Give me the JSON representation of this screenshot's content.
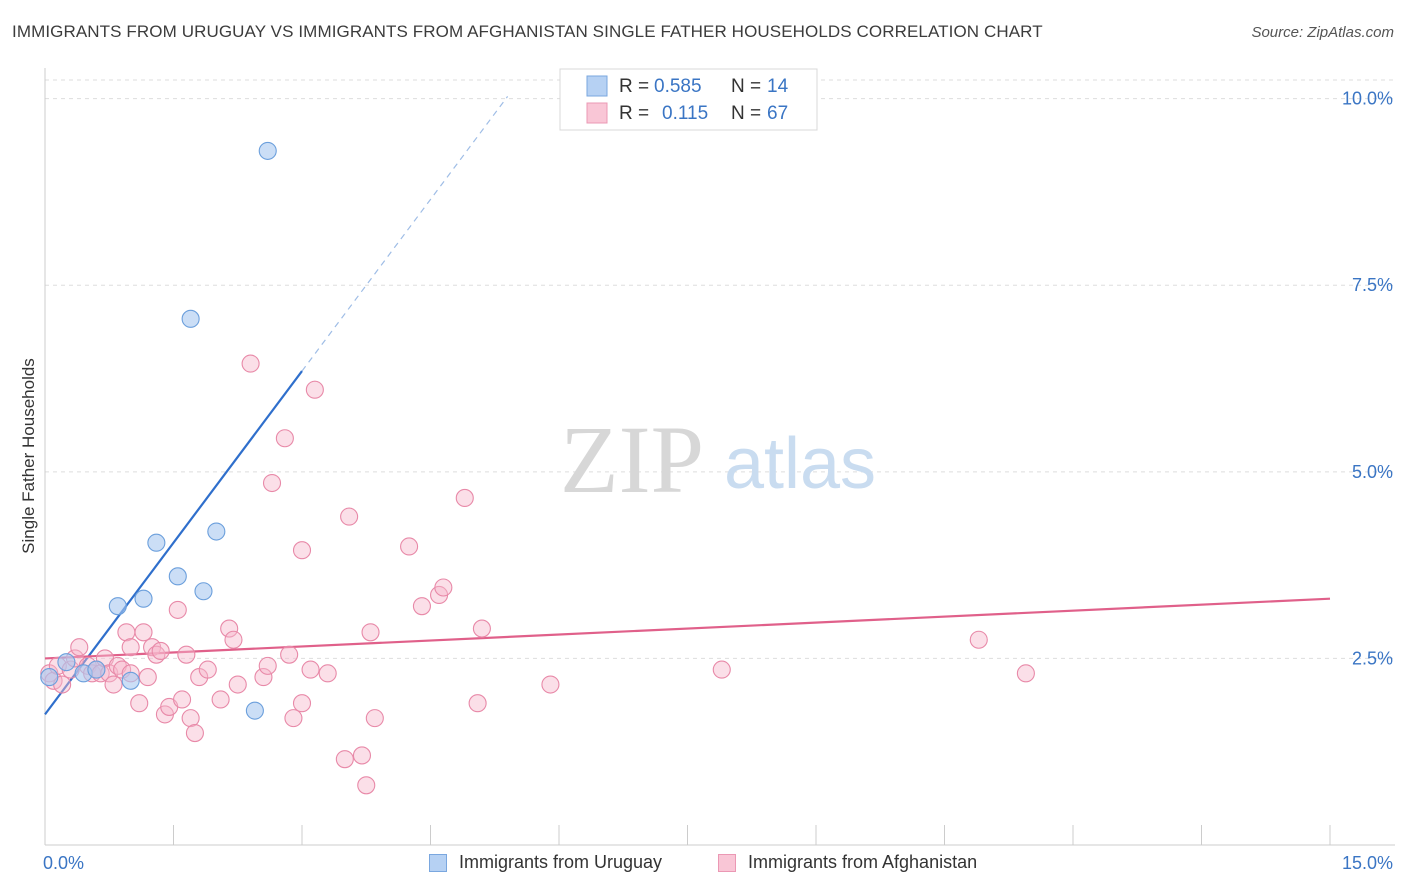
{
  "header": {
    "title": "IMMIGRANTS FROM URUGUAY VS IMMIGRANTS FROM AFGHANISTAN SINGLE FATHER HOUSEHOLDS CORRELATION CHART",
    "source": "Source: ZipAtlas.com"
  },
  "watermark": {
    "zip": "ZIP",
    "atlas": "atlas"
  },
  "legend": {
    "series1": {
      "r_label": "R =",
      "r_value": "0.585",
      "n_label": "N =",
      "n_value": "14"
    },
    "series2": {
      "r_label": "R =",
      "r_value": "0.115",
      "n_label": "N =",
      "n_value": "67"
    }
  },
  "bottom_legend": {
    "series1": "Immigrants from Uruguay",
    "series2": "Immigrants from Afghanistan"
  },
  "colors": {
    "series1_fill": "#a9c8f0",
    "series1_stroke": "#6b9fdc",
    "series1_line": "#2f6fcc",
    "series2_fill": "#f7b8cc",
    "series2_stroke": "#e889a8",
    "series2_line": "#e0608a",
    "axis_label": "#3a75c4",
    "grid": "#dddddd"
  },
  "chart_data": {
    "type": "scatter",
    "title": "IMMIGRANTS FROM URUGUAY VS IMMIGRANTS FROM AFGHANISTAN SINGLE FATHER HOUSEHOLDS CORRELATION CHART",
    "xlabel": "",
    "ylabel": "Single Father Households",
    "xlim": [
      0,
      15
    ],
    "ylim": [
      0,
      10.25
    ],
    "x_tick_labels": [
      "0.0%",
      "15.0%"
    ],
    "y_ticks": [
      2.5,
      5.0,
      7.5,
      10.0
    ],
    "y_tick_labels": [
      "2.5%",
      "5.0%",
      "7.5%",
      "10.0%"
    ],
    "x_minor_ticks": [
      0,
      1.5,
      3,
      4.5,
      6,
      7.5,
      9,
      10.5,
      12,
      13.5,
      15
    ],
    "series": [
      {
        "name": "Immigrants from Uruguay",
        "R": 0.585,
        "N": 14,
        "trend": {
          "x0": 0,
          "y0": 1.75,
          "x1": 3.0,
          "y1": 6.35,
          "dash_to_x": 5.4
        },
        "points": [
          {
            "x": 0.05,
            "y": 2.25
          },
          {
            "x": 0.25,
            "y": 2.45
          },
          {
            "x": 0.45,
            "y": 2.3
          },
          {
            "x": 0.6,
            "y": 2.35
          },
          {
            "x": 0.85,
            "y": 3.2
          },
          {
            "x": 1.0,
            "y": 2.2
          },
          {
            "x": 1.15,
            "y": 3.3
          },
          {
            "x": 1.3,
            "y": 4.05
          },
          {
            "x": 1.55,
            "y": 3.6
          },
          {
            "x": 1.85,
            "y": 3.4
          },
          {
            "x": 2.0,
            "y": 4.2
          },
          {
            "x": 1.7,
            "y": 7.05
          },
          {
            "x": 2.6,
            "y": 9.3
          },
          {
            "x": 2.45,
            "y": 1.8
          }
        ]
      },
      {
        "name": "Immigrants from Afghanistan",
        "R": 0.115,
        "N": 67,
        "trend": {
          "x0": 0,
          "y0": 2.5,
          "x1": 15,
          "y1": 3.3
        },
        "points": [
          {
            "x": 0.05,
            "y": 2.3
          },
          {
            "x": 0.1,
            "y": 2.2
          },
          {
            "x": 0.15,
            "y": 2.4
          },
          {
            "x": 0.2,
            "y": 2.15
          },
          {
            "x": 0.3,
            "y": 2.35
          },
          {
            "x": 0.35,
            "y": 2.5
          },
          {
            "x": 0.4,
            "y": 2.65
          },
          {
            "x": 0.5,
            "y": 2.4
          },
          {
            "x": 0.55,
            "y": 2.3
          },
          {
            "x": 0.6,
            "y": 2.35
          },
          {
            "x": 0.65,
            "y": 2.3
          },
          {
            "x": 0.7,
            "y": 2.5
          },
          {
            "x": 0.75,
            "y": 2.3
          },
          {
            "x": 0.8,
            "y": 2.15
          },
          {
            "x": 0.85,
            "y": 2.4
          },
          {
            "x": 0.9,
            "y": 2.35
          },
          {
            "x": 0.95,
            "y": 2.85
          },
          {
            "x": 1.0,
            "y": 2.3
          },
          {
            "x": 1.0,
            "y": 2.65
          },
          {
            "x": 1.1,
            "y": 1.9
          },
          {
            "x": 1.15,
            "y": 2.85
          },
          {
            "x": 1.2,
            "y": 2.25
          },
          {
            "x": 1.25,
            "y": 2.65
          },
          {
            "x": 1.3,
            "y": 2.55
          },
          {
            "x": 1.35,
            "y": 2.6
          },
          {
            "x": 1.4,
            "y": 1.75
          },
          {
            "x": 1.45,
            "y": 1.85
          },
          {
            "x": 1.55,
            "y": 3.15
          },
          {
            "x": 1.6,
            "y": 1.95
          },
          {
            "x": 1.65,
            "y": 2.55
          },
          {
            "x": 1.7,
            "y": 1.7
          },
          {
            "x": 1.75,
            "y": 1.5
          },
          {
            "x": 1.8,
            "y": 2.25
          },
          {
            "x": 1.9,
            "y": 2.35
          },
          {
            "x": 2.05,
            "y": 1.95
          },
          {
            "x": 2.15,
            "y": 2.9
          },
          {
            "x": 2.2,
            "y": 2.75
          },
          {
            "x": 2.25,
            "y": 2.15
          },
          {
            "x": 2.4,
            "y": 6.45
          },
          {
            "x": 2.55,
            "y": 2.25
          },
          {
            "x": 2.6,
            "y": 2.4
          },
          {
            "x": 2.65,
            "y": 4.85
          },
          {
            "x": 2.8,
            "y": 5.45
          },
          {
            "x": 2.85,
            "y": 2.55
          },
          {
            "x": 2.9,
            "y": 1.7
          },
          {
            "x": 3.0,
            "y": 3.95
          },
          {
            "x": 3.0,
            "y": 1.9
          },
          {
            "x": 3.1,
            "y": 2.35
          },
          {
            "x": 3.15,
            "y": 6.1
          },
          {
            "x": 3.3,
            "y": 2.3
          },
          {
            "x": 3.5,
            "y": 1.15
          },
          {
            "x": 3.55,
            "y": 4.4
          },
          {
            "x": 3.7,
            "y": 1.2
          },
          {
            "x": 3.75,
            "y": 0.8
          },
          {
            "x": 3.8,
            "y": 2.85
          },
          {
            "x": 3.85,
            "y": 1.7
          },
          {
            "x": 4.25,
            "y": 4.0
          },
          {
            "x": 4.4,
            "y": 3.2
          },
          {
            "x": 4.6,
            "y": 3.35
          },
          {
            "x": 4.65,
            "y": 3.45
          },
          {
            "x": 4.9,
            "y": 4.65
          },
          {
            "x": 5.05,
            "y": 1.9
          },
          {
            "x": 5.1,
            "y": 2.9
          },
          {
            "x": 5.9,
            "y": 2.15
          },
          {
            "x": 7.9,
            "y": 2.35
          },
          {
            "x": 10.9,
            "y": 2.75
          },
          {
            "x": 11.45,
            "y": 2.3
          }
        ]
      }
    ]
  }
}
